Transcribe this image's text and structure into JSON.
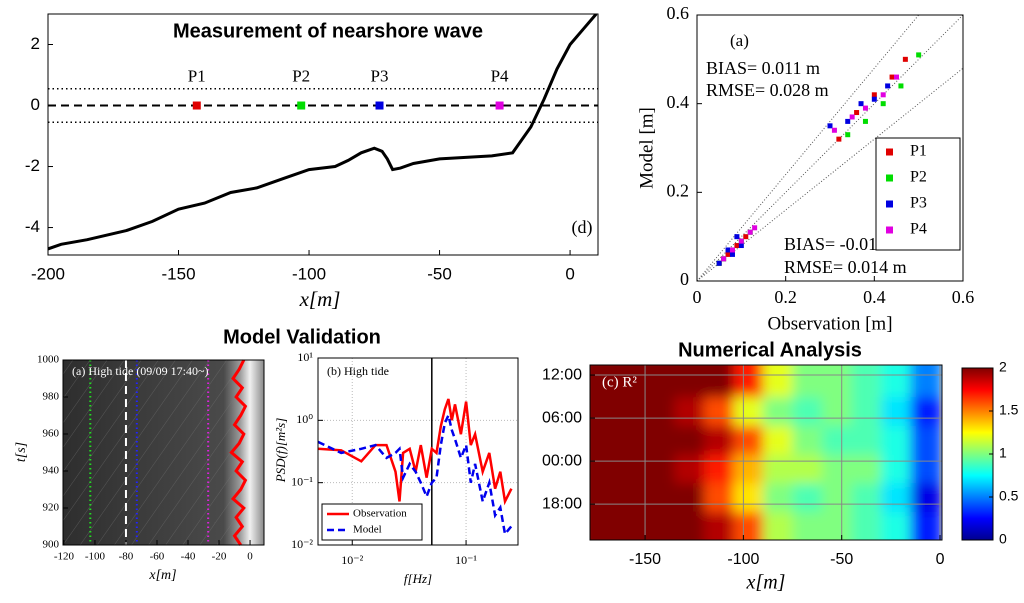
{
  "headings": [
    "Model Validation"
  ],
  "chart_data": [
    {
      "type": "line",
      "title": "Measurement of nearshore wave",
      "xlabel": "x[m]",
      "annotation": "(d)",
      "x": [
        -200,
        -195,
        -185,
        -170,
        -160,
        -150,
        -140,
        -130,
        -120,
        -110,
        -100,
        -90,
        -85,
        -80,
        -75,
        -72,
        -70,
        -68,
        -65,
        -60,
        -50,
        -40,
        -30,
        -22,
        -15,
        -10,
        -5,
        0,
        5,
        10
      ],
      "values": [
        -4.7,
        -4.55,
        -4.4,
        -4.1,
        -3.8,
        -3.4,
        -3.2,
        -2.85,
        -2.7,
        -2.4,
        -2.1,
        -2.0,
        -1.8,
        -1.55,
        -1.4,
        -1.5,
        -1.75,
        -2.1,
        -2.05,
        -1.9,
        -1.75,
        -1.7,
        -1.65,
        -1.55,
        -0.7,
        0.2,
        1.2,
        2.0,
        2.5,
        3.0
      ],
      "color": "#000000",
      "points": {
        "names": [
          "P1",
          "P2",
          "P3",
          "P4"
        ],
        "x": [
          -143,
          -103,
          -73,
          -27
        ],
        "y": [
          0,
          0,
          0,
          0
        ],
        "colors": [
          "#e00000",
          "#00dd00",
          "#0000e0",
          "#e000e0"
        ]
      },
      "hlines": [
        0.55,
        0,
        -0.55
      ],
      "hline_styles": [
        "dotted",
        "dashed",
        "dotted"
      ],
      "xlim": [
        -200,
        10.7
      ],
      "ylim": [
        -4.9,
        3
      ],
      "xticks": [
        -200,
        -150,
        -100,
        -50,
        0
      ],
      "yticks": [
        -4,
        -2,
        0,
        2
      ],
      "grid": false
    },
    {
      "type": "scatter",
      "xlabel": "Observation [m]",
      "ylabel": "Model [m]",
      "annotations": [
        "(a)",
        "BIAS= 0.011 m",
        "RMSE= 0.028 m",
        "BIAS= -0.010 m",
        "RMSE= 0.014 m"
      ],
      "reference_slopes": [
        1.2,
        1,
        0.8
      ],
      "series": [
        {
          "name": "P1",
          "color": "#e00000",
          "x": [
            0.05,
            0.07,
            0.09,
            0.11,
            0.06,
            0.32,
            0.36,
            0.4,
            0.44,
            0.47
          ],
          "y": [
            0.04,
            0.06,
            0.08,
            0.1,
            0.05,
            0.32,
            0.38,
            0.42,
            0.46,
            0.5
          ]
        },
        {
          "name": "P2",
          "color": "#00dd00",
          "x": [
            0.06,
            0.08,
            0.1,
            0.12,
            0.05,
            0.34,
            0.38,
            0.42,
            0.46,
            0.5
          ],
          "y": [
            0.05,
            0.07,
            0.09,
            0.11,
            0.04,
            0.33,
            0.36,
            0.4,
            0.44,
            0.51
          ]
        },
        {
          "name": "P3",
          "color": "#0000e0",
          "x": [
            0.05,
            0.07,
            0.09,
            0.1,
            0.08,
            0.3,
            0.34,
            0.37,
            0.4,
            0.43
          ],
          "y": [
            0.04,
            0.07,
            0.1,
            0.08,
            0.06,
            0.35,
            0.36,
            0.4,
            0.41,
            0.44
          ]
        },
        {
          "name": "P4",
          "color": "#e000e0",
          "x": [
            0.06,
            0.08,
            0.1,
            0.12,
            0.13,
            0.31,
            0.35,
            0.38,
            0.42,
            0.45
          ],
          "y": [
            0.05,
            0.07,
            0.09,
            0.11,
            0.12,
            0.34,
            0.37,
            0.39,
            0.42,
            0.46
          ]
        }
      ],
      "legend": "right",
      "xlim": [
        0,
        0.6
      ],
      "ylim": [
        0,
        0.6
      ],
      "xticks": [
        0,
        0.2,
        0.4,
        0.6
      ],
      "yticks": [
        0,
        0.2,
        0.4,
        0.6
      ],
      "grid": false
    },
    {
      "type": "timestack",
      "annotation": "(a) High tide (09/09 17:40~)",
      "xlabel": "x[m]",
      "ylabel": "t[s]",
      "vlines": [
        -103,
        -80,
        -73,
        -27
      ],
      "vline_colors": [
        "#22dd22",
        "#ffffff",
        "#2222ff",
        "#dd22dd"
      ],
      "vline_styles": [
        "dotted",
        "dashed",
        "dotted",
        "dotted"
      ],
      "t": [
        900,
        905,
        910,
        915,
        920,
        925,
        930,
        935,
        940,
        945,
        950,
        955,
        960,
        965,
        970,
        975,
        980,
        985,
        990,
        995,
        1000
      ],
      "shoreline": [
        -6,
        -10,
        -5,
        -9,
        -4,
        -11,
        -6,
        -3,
        -9,
        -5,
        -12,
        -7,
        -4,
        -10,
        -6,
        -3,
        -9,
        -5,
        -11,
        -7,
        -4
      ],
      "shoreline_color": "#ff0000",
      "xlim": [
        -120.6,
        9
      ],
      "ylim": [
        900,
        1000
      ],
      "xticks": [
        -120,
        -100,
        -80,
        -60,
        -40,
        -20,
        0
      ],
      "yticks": [
        900,
        920,
        940,
        960,
        980,
        1000
      ],
      "grid": false
    },
    {
      "type": "psd",
      "title": "(b) High tide",
      "xlabel": "f[Hz]",
      "ylabel": "PSD(f)[m²s]",
      "x": [
        0.005,
        0.008,
        0.012,
        0.016,
        0.02,
        0.024,
        0.026,
        0.028,
        0.032,
        0.036,
        0.04,
        0.045,
        0.05,
        0.055,
        0.06,
        0.065,
        0.07,
        0.075,
        0.08,
        0.09,
        0.1,
        0.11,
        0.12,
        0.14,
        0.16,
        0.18,
        0.2,
        0.22,
        0.25
      ],
      "series": [
        {
          "name": "Observation",
          "color": "#ff0000",
          "style": "solid",
          "values": [
            0.35,
            0.33,
            0.22,
            0.4,
            0.4,
            0.15,
            0.05,
            0.3,
            0.35,
            0.15,
            0.4,
            0.12,
            0.35,
            0.3,
            0.8,
            1.5,
            2.2,
            1.0,
            1.8,
            0.6,
            2.0,
            0.4,
            0.6,
            0.15,
            0.3,
            0.08,
            0.15,
            0.05,
            0.08
          ]
        },
        {
          "name": "Model",
          "color": "#0000ee",
          "style": "dashed",
          "values": [
            0.45,
            0.3,
            0.35,
            0.4,
            0.25,
            0.3,
            0.35,
            0.12,
            0.2,
            0.15,
            0.1,
            0.06,
            0.1,
            0.12,
            0.4,
            0.9,
            1.2,
            0.7,
            0.5,
            0.25,
            0.4,
            0.1,
            0.2,
            0.05,
            0.1,
            0.03,
            0.04,
            0.015,
            0.02
          ]
        }
      ],
      "vlines": [
        0.05
      ],
      "legend": "lower left",
      "xscale": "log",
      "yscale": "log",
      "xlim": [
        0.005,
        0.286
      ],
      "ylim": [
        0.01,
        10
      ],
      "xticks": [
        {
          "value": 0.01,
          "label": "10⁻²"
        },
        {
          "value": 0.1,
          "label": "10⁻¹"
        }
      ],
      "yticks": [
        {
          "value": 0.01,
          "label": "10⁻²"
        },
        {
          "value": 0.1,
          "label": "10⁻¹"
        },
        {
          "value": 1,
          "label": "10⁰"
        },
        {
          "value": 10,
          "label": "10¹"
        }
      ],
      "grid": true
    },
    {
      "type": "heatmap",
      "title": "Numerical Analysis",
      "annotation": "(c) R²",
      "xlabel": "x[m]",
      "x_edges": [
        -178,
        -165,
        -150,
        -135,
        -120,
        -105,
        -90,
        -75,
        -60,
        -45,
        -30,
        -15,
        1
      ],
      "y_edges": [
        13,
        17,
        21,
        25,
        29,
        33,
        37.4
      ],
      "z": [
        [
          2,
          2,
          2,
          2,
          1.9,
          1.6,
          1.1,
          1.0,
          1.0,
          0.9,
          0.8,
          0.3
        ],
        [
          2,
          2,
          2,
          2,
          1.6,
          1.3,
          1.0,
          0.9,
          1.0,
          0.9,
          0.7,
          0.2
        ],
        [
          2,
          2,
          2,
          1.9,
          1.7,
          1.4,
          1.1,
          1.1,
          1.0,
          1.0,
          0.8,
          0.4
        ],
        [
          2,
          2,
          2,
          2,
          1.9,
          1.6,
          1.2,
          1.0,
          0.9,
          0.9,
          0.8,
          0.4
        ],
        [
          2,
          2,
          2,
          1.9,
          1.6,
          1.2,
          1.0,
          0.9,
          1.0,
          0.9,
          0.7,
          0.3
        ],
        [
          2,
          2,
          2,
          2,
          2,
          1.7,
          1.2,
          1.0,
          1.0,
          0.9,
          0.8,
          0.5
        ]
      ],
      "colormap": "jet",
      "clim": [
        0,
        2
      ],
      "cticks": [
        0,
        0.5,
        1,
        1.5,
        2
      ],
      "xlim": [
        -178,
        1
      ],
      "ylim": [
        13,
        37.4
      ],
      "xticks": [
        -150,
        -100,
        -50,
        0
      ],
      "yticks": [
        {
          "value": 18,
          "label": "18:00"
        },
        {
          "value": 24,
          "label": "00:00"
        },
        {
          "value": 30,
          "label": "06:00"
        },
        {
          "value": 36,
          "label": "12:00"
        }
      ],
      "grid": true
    }
  ]
}
